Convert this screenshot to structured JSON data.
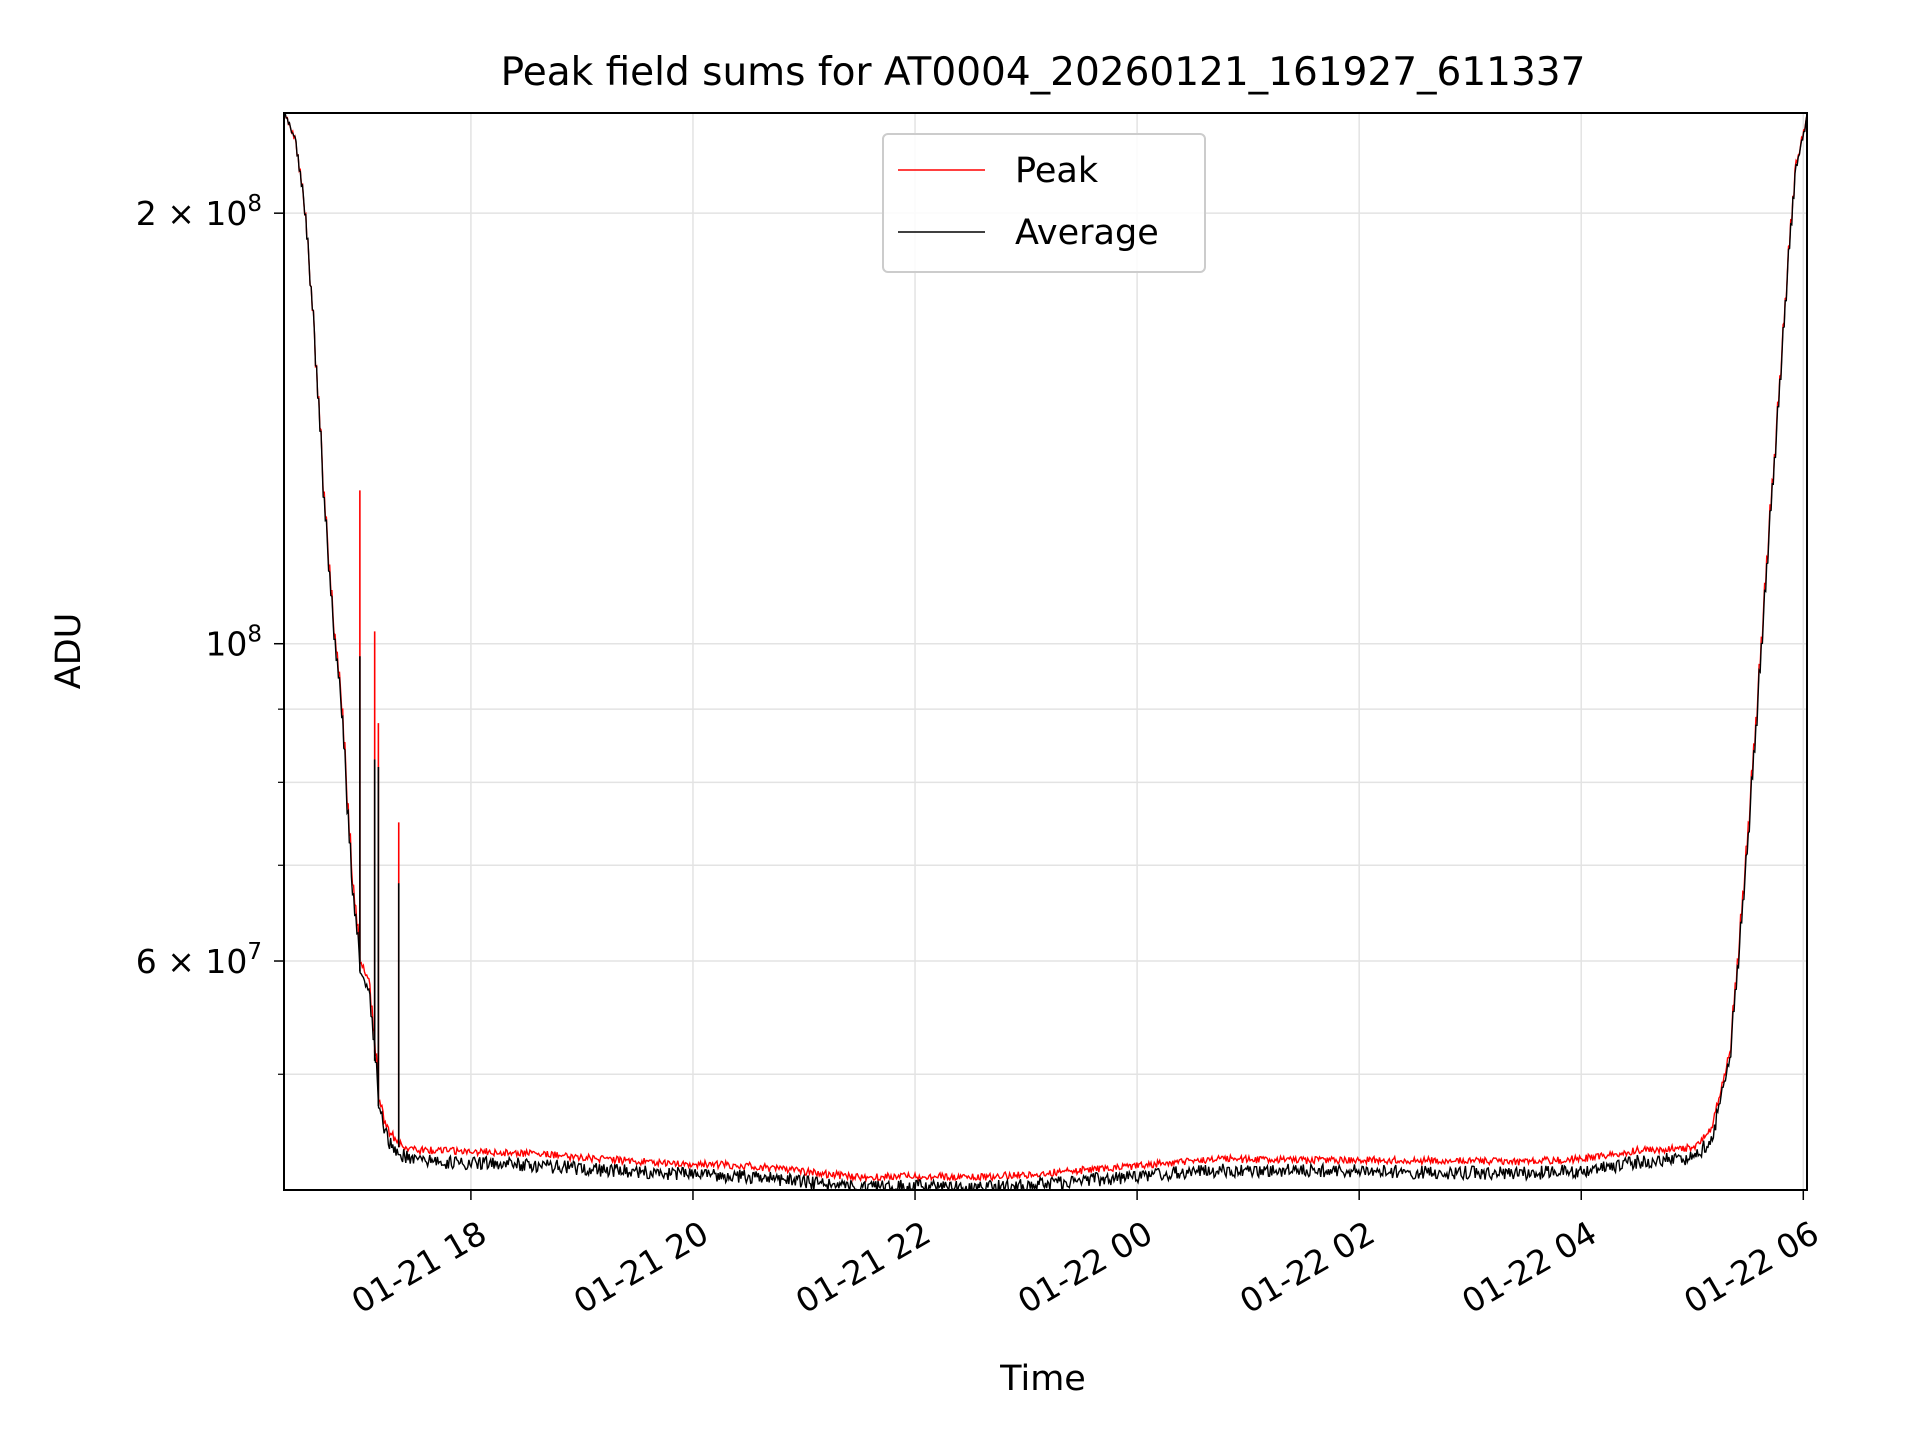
{
  "chart_data": {
    "type": "line",
    "title": "Peak field sums for AT0004_20260121_161927_611337",
    "xlabel": "Time",
    "ylabel": "ADU",
    "yscale": "log",
    "xlim": [
      "2026-01-21 16:19",
      "2026-01-22 06:02"
    ],
    "ylim": [
      41500000,
      235000000
    ],
    "grid": true,
    "legend": "upper center",
    "x_ticks": [
      "01-21 18",
      "01-21 20",
      "01-21 22",
      "01-22 00",
      "01-22 02",
      "01-22 04",
      "01-22 06"
    ],
    "x_tick_times": [
      "2026-01-21 18:00",
      "2026-01-21 20:00",
      "2026-01-21 22:00",
      "2026-01-22 00:00",
      "2026-01-22 02:00",
      "2026-01-22 04:00",
      "2026-01-22 06:00"
    ],
    "y_ticks": [
      {
        "value": 200000000,
        "mantissa": "2",
        "exp": "8"
      },
      {
        "value": 100000000,
        "mantissa": "",
        "exp": "8"
      },
      {
        "value": 60000000,
        "mantissa": "6",
        "exp": "7"
      }
    ],
    "y_minor_ticks": [
      50000000,
      70000000,
      80000000,
      90000000
    ],
    "colors": {
      "peak": "#ff0000",
      "average": "#000000"
    },
    "series": [
      {
        "name": "Peak",
        "key": "peak",
        "x": [
          "2026-01-21 16:19",
          "2026-01-21 16:25",
          "2026-01-21 16:30",
          "2026-01-21 16:35",
          "2026-01-21 16:40",
          "2026-01-21 16:45",
          "2026-01-21 16:50",
          "2026-01-21 16:55",
          "2026-01-21 17:00",
          "2026-01-21 17:05",
          "2026-01-21 17:10",
          "2026-01-21 17:15",
          "2026-01-21 17:20",
          "2026-01-21 17:30",
          "2026-01-21 17:45",
          "2026-01-21 18:30",
          "2026-01-21 19:30",
          "2026-01-21 20:30",
          "2026-01-21 21:00",
          "2026-01-21 21:30",
          "2026-01-21 22:00",
          "2026-01-21 22:30",
          "2026-01-21 23:00",
          "2026-01-21 23:30",
          "2026-01-22 00:00",
          "2026-01-22 00:40",
          "2026-01-22 01:30",
          "2026-01-22 02:30",
          "2026-01-22 03:30",
          "2026-01-22 04:00",
          "2026-01-22 04:30",
          "2026-01-22 05:00",
          "2026-01-22 05:10",
          "2026-01-22 05:20",
          "2026-01-22 05:30",
          "2026-01-22 05:40",
          "2026-01-22 05:50",
          "2026-01-22 05:55",
          "2026-01-22 06:02"
        ],
        "y": [
          235000000,
          225000000,
          200000000,
          165000000,
          128000000,
          105000000,
          90000000,
          70000000,
          60000000,
          58000000,
          48000000,
          46000000,
          45000000,
          44500000,
          44500000,
          44300000,
          43700000,
          43400000,
          43000000,
          42600000,
          42700000,
          42600000,
          42800000,
          43100000,
          43400000,
          43900000,
          43800000,
          43800000,
          43700000,
          43900000,
          44500000,
          44700000,
          46000000,
          52000000,
          75000000,
          115000000,
          175000000,
          215000000,
          235000000
        ],
        "spikes": [
          {
            "x": "2026-01-21 17:00",
            "y": 128000000
          },
          {
            "x": "2026-01-21 17:08",
            "y": 102000000
          },
          {
            "x": "2026-01-21 17:10",
            "y": 88000000
          },
          {
            "x": "2026-01-21 17:21",
            "y": 75000000
          }
        ]
      },
      {
        "name": "Average",
        "key": "average",
        "x": [
          "2026-01-21 16:19",
          "2026-01-21 16:25",
          "2026-01-21 16:30",
          "2026-01-21 16:35",
          "2026-01-21 16:40",
          "2026-01-21 16:45",
          "2026-01-21 16:50",
          "2026-01-21 16:55",
          "2026-01-21 17:00",
          "2026-01-21 17:05",
          "2026-01-21 17:10",
          "2026-01-21 17:15",
          "2026-01-21 17:20",
          "2026-01-21 17:30",
          "2026-01-21 17:45",
          "2026-01-21 18:30",
          "2026-01-21 19:30",
          "2026-01-21 20:30",
          "2026-01-21 21:00",
          "2026-01-21 21:30",
          "2026-01-21 22:00",
          "2026-01-21 22:30",
          "2026-01-21 23:00",
          "2026-01-21 23:30",
          "2026-01-22 00:00",
          "2026-01-22 00:40",
          "2026-01-22 01:30",
          "2026-01-22 02:30",
          "2026-01-22 03:30",
          "2026-01-22 04:00",
          "2026-01-22 04:30",
          "2026-01-22 05:00",
          "2026-01-22 05:10",
          "2026-01-22 05:20",
          "2026-01-22 05:30",
          "2026-01-22 05:40",
          "2026-01-22 05:50",
          "2026-01-22 05:55",
          "2026-01-22 06:02"
        ],
        "y": [
          235000000,
          225000000,
          200000000,
          165000000,
          127000000,
          104000000,
          89000000,
          69000000,
          59000000,
          57000000,
          47500000,
          45500000,
          44500000,
          44000000,
          43900000,
          43700000,
          43200000,
          42900000,
          42500000,
          42100000,
          42200000,
          42100000,
          42300000,
          42600000,
          42900000,
          43300000,
          43300000,
          43200000,
          43100000,
          43300000,
          43900000,
          44200000,
          45500000,
          51500000,
          74000000,
          114000000,
          174000000,
          214000000,
          235000000
        ],
        "spikes": [
          {
            "x": "2026-01-21 17:00",
            "y": 98000000
          },
          {
            "x": "2026-01-21 17:08",
            "y": 83000000
          },
          {
            "x": "2026-01-21 17:10",
            "y": 82000000
          },
          {
            "x": "2026-01-21 17:21",
            "y": 68000000
          }
        ]
      }
    ]
  }
}
